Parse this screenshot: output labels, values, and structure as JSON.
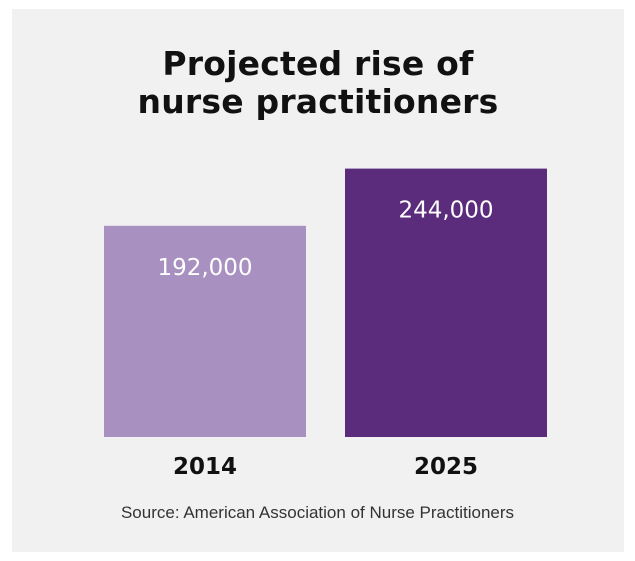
{
  "chart_data": {
    "type": "bar",
    "title_lines": [
      "Projected rise of",
      "nurse practitioners"
    ],
    "categories": [
      "2014",
      "2025"
    ],
    "values": [
      192000,
      244000
    ],
    "value_labels": [
      "192,000",
      "244,000"
    ],
    "colors": [
      "#a890c0",
      "#5b2b7c"
    ],
    "source": "Source: American Association of Nurse Practitioners",
    "grid": false,
    "legend": "none"
  }
}
